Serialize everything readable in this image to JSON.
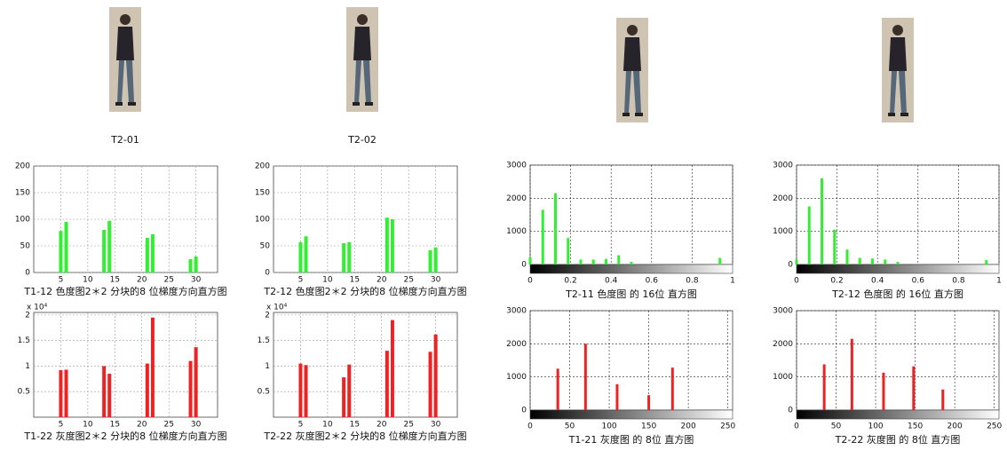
{
  "images": [
    {
      "label": "T2-01"
    },
    {
      "label": "T2-02"
    }
  ],
  "chart_data": [
    {
      "type": "bar",
      "title": "T1-12 色度图2＊2 分块的8 位梯度方向直方图",
      "color": "#33ee33",
      "grid": true,
      "x": [
        5,
        6,
        13,
        14,
        21,
        22,
        29,
        30
      ],
      "values": [
        78,
        95,
        80,
        97,
        65,
        72,
        25,
        30
      ],
      "xlim": [
        0,
        34
      ],
      "xticks": [
        5,
        10,
        15,
        20,
        25,
        30
      ],
      "ylim": [
        0,
        200
      ],
      "yticks": [
        0,
        50,
        100,
        150,
        200
      ]
    },
    {
      "type": "bar",
      "title": "T2-12 色度图2＊2 分块的8 位梯度方向直方图",
      "color": "#33ee33",
      "grid": true,
      "x": [
        5,
        6,
        13,
        14,
        21,
        22,
        29,
        30
      ],
      "values": [
        57,
        68,
        55,
        57,
        103,
        100,
        42,
        47
      ],
      "xlim": [
        0,
        34
      ],
      "xticks": [
        5,
        10,
        15,
        20,
        25,
        30
      ],
      "ylim": [
        0,
        200
      ],
      "yticks": [
        0,
        50,
        100,
        150,
        200
      ]
    },
    {
      "type": "bar",
      "title": "T1-22 灰度图2＊2 分块的8 位梯度方向直方图",
      "color": "#ee2222",
      "grid": true,
      "y_multiplier": "x 10⁴",
      "x": [
        5,
        6,
        13,
        14,
        21,
        22,
        29,
        30
      ],
      "values": [
        0.92,
        0.93,
        1.0,
        0.85,
        1.05,
        1.95,
        1.1,
        1.37
      ],
      "xlim": [
        0,
        34
      ],
      "xticks": [
        5,
        10,
        15,
        20,
        25,
        30
      ],
      "ylim": [
        0,
        2.05
      ],
      "yticks": [
        0.5,
        1,
        1.5,
        2
      ]
    },
    {
      "type": "bar",
      "title": "T2-22 灰度图2＊2 分块的8 位梯度方向直方图",
      "color": "#ee2222",
      "grid": true,
      "y_multiplier": "x 10⁴",
      "x": [
        5,
        6,
        13,
        14,
        21,
        22,
        29,
        30
      ],
      "values": [
        1.05,
        1.02,
        0.78,
        1.03,
        1.3,
        1.9,
        1.28,
        1.62
      ],
      "xlim": [
        0,
        34
      ],
      "xticks": [
        5,
        10,
        15,
        20,
        25,
        30
      ],
      "ylim": [
        0,
        2.05
      ],
      "yticks": [
        0.5,
        1,
        1.5,
        2
      ]
    },
    {
      "type": "bar",
      "title": "T2-11 色度图 的 16位 直方图",
      "color": "#33ee33",
      "grid": true,
      "colorbar": true,
      "x": [
        0,
        0.0625,
        0.125,
        0.1875,
        0.25,
        0.3125,
        0.375,
        0.4375,
        0.5,
        0.9375
      ],
      "values": [
        220,
        1650,
        2150,
        800,
        150,
        150,
        170,
        280,
        80,
        200
      ],
      "xlim": [
        0,
        1
      ],
      "xticks": [
        0,
        0.2,
        0.4,
        0.6,
        0.8,
        1
      ],
      "ylim": [
        0,
        3000
      ],
      "yticks": [
        0,
        1000,
        2000,
        3000
      ]
    },
    {
      "type": "bar",
      "title": "T2-12 色度图 的 16位 直方图",
      "color": "#33ee33",
      "grid": true,
      "colorbar": true,
      "x": [
        0,
        0.0625,
        0.125,
        0.1875,
        0.25,
        0.3125,
        0.375,
        0.4375,
        0.5,
        0.9375
      ],
      "values": [
        150,
        1750,
        2600,
        1050,
        450,
        200,
        180,
        150,
        80,
        130
      ],
      "xlim": [
        0,
        1
      ],
      "xticks": [
        0,
        0.2,
        0.4,
        0.6,
        0.8,
        1
      ],
      "ylim": [
        0,
        3000
      ],
      "yticks": [
        0,
        1000,
        2000,
        3000
      ]
    },
    {
      "type": "bar",
      "title": "T1-21 灰度图 的 8位 直方图",
      "color": "#ee2222",
      "grid": true,
      "colorbar": true,
      "x": [
        35,
        70,
        110,
        150,
        180
      ],
      "values": [
        1250,
        2000,
        780,
        450,
        1280
      ],
      "xlim": [
        0,
        256
      ],
      "xticks": [
        0,
        50,
        100,
        150,
        200,
        250
      ],
      "ylim": [
        0,
        3000
      ],
      "yticks": [
        0,
        1000,
        2000,
        3000
      ]
    },
    {
      "type": "bar",
      "title": "T2-22 灰度图 的 8位 直方图",
      "color": "#ee2222",
      "grid": true,
      "colorbar": true,
      "x": [
        35,
        70,
        110,
        148,
        185
      ],
      "values": [
        1380,
        2150,
        1130,
        1320,
        620
      ],
      "xlim": [
        0,
        256
      ],
      "xticks": [
        0,
        50,
        100,
        150,
        200,
        250
      ],
      "ylim": [
        0,
        3000
      ],
      "yticks": [
        0,
        1000,
        2000,
        3000
      ]
    }
  ]
}
